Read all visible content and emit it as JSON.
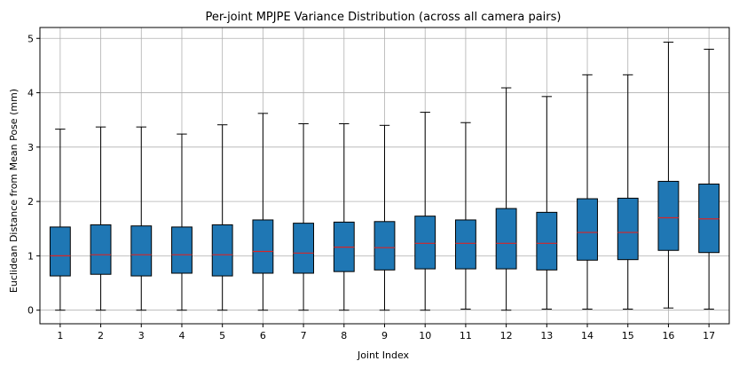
{
  "chart_data": {
    "type": "box",
    "title": "Per-joint MPJPE Variance Distribution (across all camera pairs)",
    "xlabel": "Joint Index",
    "ylabel": "Euclidean Distance from Mean Pose (mm)",
    "grid": true,
    "ylim": [
      -0.25,
      5.2
    ],
    "yticks": [
      0,
      1,
      2,
      3,
      4,
      5
    ],
    "categories": [
      "1",
      "2",
      "3",
      "4",
      "5",
      "6",
      "7",
      "8",
      "9",
      "10",
      "11",
      "12",
      "13",
      "14",
      "15",
      "16",
      "17"
    ],
    "boxes": [
      {
        "whisker_low": 0.0,
        "q1": 0.63,
        "median": 1.0,
        "q3": 1.53,
        "whisker_high": 3.33
      },
      {
        "whisker_low": 0.0,
        "q1": 0.66,
        "median": 1.02,
        "q3": 1.57,
        "whisker_high": 3.37
      },
      {
        "whisker_low": 0.0,
        "q1": 0.63,
        "median": 1.02,
        "q3": 1.55,
        "whisker_high": 3.37
      },
      {
        "whisker_low": 0.0,
        "q1": 0.68,
        "median": 1.02,
        "q3": 1.53,
        "whisker_high": 3.24
      },
      {
        "whisker_low": 0.0,
        "q1": 0.63,
        "median": 1.02,
        "q3": 1.57,
        "whisker_high": 3.41
      },
      {
        "whisker_low": 0.0,
        "q1": 0.68,
        "median": 1.08,
        "q3": 1.66,
        "whisker_high": 3.62
      },
      {
        "whisker_low": 0.0,
        "q1": 0.68,
        "median": 1.05,
        "q3": 1.6,
        "whisker_high": 3.43
      },
      {
        "whisker_low": 0.0,
        "q1": 0.71,
        "median": 1.16,
        "q3": 1.62,
        "whisker_high": 3.43
      },
      {
        "whisker_low": 0.0,
        "q1": 0.74,
        "median": 1.15,
        "q3": 1.63,
        "whisker_high": 3.4
      },
      {
        "whisker_low": 0.0,
        "q1": 0.76,
        "median": 1.23,
        "q3": 1.73,
        "whisker_high": 3.64
      },
      {
        "whisker_low": 0.02,
        "q1": 0.76,
        "median": 1.23,
        "q3": 1.66,
        "whisker_high": 3.45
      },
      {
        "whisker_low": 0.0,
        "q1": 0.76,
        "median": 1.23,
        "q3": 1.87,
        "whisker_high": 4.09
      },
      {
        "whisker_low": 0.02,
        "q1": 0.74,
        "median": 1.23,
        "q3": 1.8,
        "whisker_high": 3.93
      },
      {
        "whisker_low": 0.02,
        "q1": 0.92,
        "median": 1.43,
        "q3": 2.05,
        "whisker_high": 4.33
      },
      {
        "whisker_low": 0.02,
        "q1": 0.93,
        "median": 1.43,
        "q3": 2.06,
        "whisker_high": 4.33
      },
      {
        "whisker_low": 0.04,
        "q1": 1.1,
        "median": 1.7,
        "q3": 2.37,
        "whisker_high": 4.93
      },
      {
        "whisker_low": 0.02,
        "q1": 1.06,
        "median": 1.68,
        "q3": 2.32,
        "whisker_high": 4.8
      }
    ],
    "colors": {
      "box_fill": "#1f77b4",
      "box_edge": "#000000",
      "median": "#d62728",
      "grid": "#b0b0b0"
    }
  }
}
